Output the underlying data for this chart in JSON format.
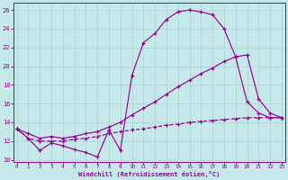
{
  "bg_color": "#c5e8e8",
  "line_color": "#990099",
  "grid_color": "#aad4d4",
  "xlim": [
    -0.3,
    23.3
  ],
  "ylim": [
    9.8,
    26.8
  ],
  "xticks": [
    0,
    1,
    2,
    3,
    4,
    5,
    6,
    7,
    8,
    9,
    10,
    11,
    12,
    13,
    14,
    15,
    16,
    17,
    18,
    19,
    20,
    21,
    22,
    23
  ],
  "yticks": [
    10,
    12,
    14,
    16,
    18,
    20,
    22,
    24,
    26
  ],
  "xlabel": "Windchill (Refroidissement éolien,°C)",
  "curve1_x": [
    0,
    1,
    2,
    3,
    4,
    5,
    6,
    7,
    8,
    9,
    10,
    11,
    12,
    13,
    14,
    15,
    16,
    17,
    18,
    19,
    20,
    21,
    22,
    23
  ],
  "curve1_y": [
    13.3,
    12.3,
    11.0,
    11.8,
    11.5,
    11.1,
    10.8,
    10.3,
    13.2,
    11.0,
    19.0,
    22.5,
    23.5,
    25.0,
    25.8,
    26.0,
    25.8,
    25.5,
    24.0,
    21.0,
    16.2,
    15.0,
    14.5,
    14.5
  ],
  "curve2_x": [
    0,
    1,
    2,
    3,
    4,
    5,
    6,
    7,
    8,
    9,
    10,
    11,
    12,
    13,
    14,
    15,
    16,
    17,
    18,
    19,
    20,
    21,
    22,
    23
  ],
  "curve2_y": [
    13.3,
    12.8,
    12.3,
    12.5,
    12.3,
    12.5,
    12.8,
    13.0,
    13.5,
    14.0,
    14.8,
    15.5,
    16.2,
    17.0,
    17.8,
    18.5,
    19.2,
    19.8,
    20.5,
    21.0,
    21.2,
    16.5,
    15.0,
    14.5
  ],
  "curve3_x": [
    0,
    1,
    2,
    3,
    4,
    5,
    6,
    7,
    8,
    9,
    10,
    11,
    12,
    13,
    14,
    15,
    16,
    17,
    18,
    19,
    20,
    21,
    22,
    23
  ],
  "curve3_y": [
    13.3,
    12.3,
    12.0,
    12.0,
    12.0,
    12.2,
    12.3,
    12.5,
    12.8,
    13.0,
    13.2,
    13.3,
    13.5,
    13.7,
    13.8,
    14.0,
    14.1,
    14.2,
    14.3,
    14.4,
    14.5,
    14.5,
    14.5,
    14.5
  ]
}
